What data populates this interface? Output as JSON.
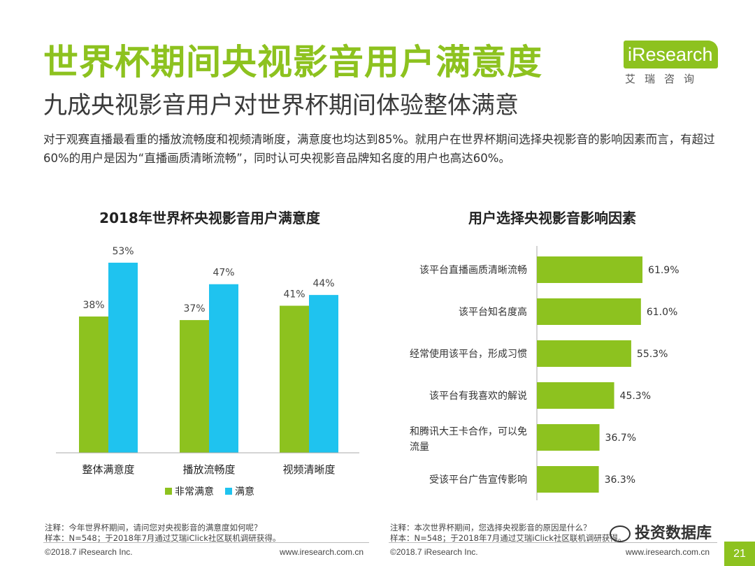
{
  "header": {
    "title": "世界杯期间央视影音用户满意度",
    "subtitle": "九成央视影音用户对世界杯期间体验整体满意",
    "intro": "对于观赛直播最看重的播放流畅度和视频清晰度，满意度也均达到85%。就用户在世界杯期间选择央视影音的影响因素而言，有超过60%的用户是因为“直播画质清晰流畅”，同时认可央视影音品牌知名度的用户也高达60%。"
  },
  "logo": {
    "text": "iResearch",
    "cn": "艾瑞咨询"
  },
  "colors": {
    "green": "#8dc21f",
    "cyan": "#1fc3ef"
  },
  "chart_data": [
    {
      "type": "bar",
      "title": "2018年世界杯央视影音用户满意度",
      "categories": [
        "整体满意度",
        "播放流畅度",
        "视频清晰度"
      ],
      "series": [
        {
          "name": "非常满意",
          "values": [
            38,
            37,
            41
          ],
          "labels": [
            "38%",
            "37%",
            "41%"
          ]
        },
        {
          "name": "满意",
          "values": [
            53,
            47,
            44
          ],
          "labels": [
            "53%",
            "47%",
            "44%"
          ]
        }
      ],
      "ylim": [
        0,
        60
      ],
      "grid": false,
      "legend": "bottom"
    },
    {
      "type": "bar",
      "orientation": "horizontal",
      "title": "用户选择央视影音影响因素",
      "categories": [
        "该平台直播画质清晰流畅",
        "该平台知名度高",
        "经常使用该平台，形成习惯",
        "该平台有我喜欢的解说",
        "和腾讯大王卡合作，可以免流量",
        "受该平台广告宣传影响"
      ],
      "values": [
        61.9,
        61.0,
        55.3,
        45.3,
        36.7,
        36.3
      ],
      "labels": [
        "61.9%",
        "61.0%",
        "55.3%",
        "45.3%",
        "36.7%",
        "36.3%"
      ],
      "xlim": [
        0,
        100
      ],
      "grid": false
    }
  ],
  "notes": {
    "left": [
      "注释：今年世界杯期间，请问您对央视影音的满意度如何呢？",
      "样本：N=548；于2018年7月通过艾瑞iClick社区联机调研获得。"
    ],
    "right": [
      "注释：本次世界杯期间，您选择央视影音的原因是什么？",
      "样本：N=548；于2018年7月通过艾瑞iClick社区联机调研获得。"
    ]
  },
  "footer": {
    "copyright": "©2018.7 iResearch Inc.",
    "url": "www.iresearch.com.cn",
    "page": "21"
  },
  "watermark": "投资数据库"
}
